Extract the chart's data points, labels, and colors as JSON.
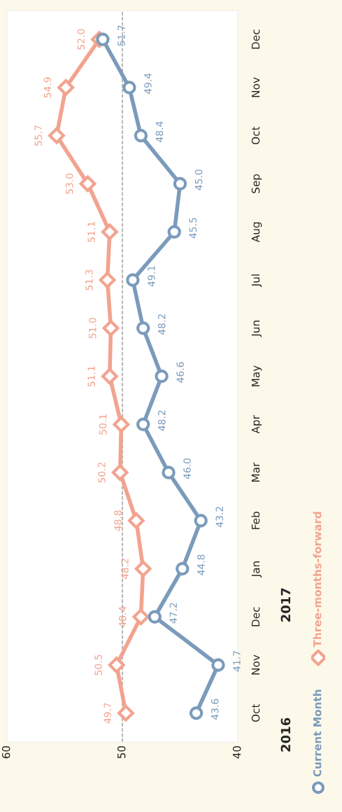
{
  "chart_data": {
    "type": "line",
    "orientation": "horizontal",
    "categories": [
      "Dec",
      "Nov",
      "Oct",
      "Sep",
      "Aug",
      "Jul",
      "Jun",
      "May",
      "Apr",
      "Mar",
      "Feb",
      "Jan",
      "Dec",
      "Nov",
      "Oct"
    ],
    "series": [
      {
        "name": "Current Month",
        "color": "#7b9bbb",
        "marker": "circle",
        "values": [
          51.7,
          49.4,
          48.4,
          45.0,
          45.5,
          49.1,
          48.2,
          46.6,
          48.2,
          46.0,
          43.2,
          44.8,
          47.2,
          41.7,
          43.6
        ],
        "value_labels": [
          "51.7",
          "49.4",
          "48.4",
          "45.0",
          "45.5",
          "49.1",
          "48.2",
          "46.6",
          "48.2",
          "46.0",
          "43.2",
          "44.8",
          "47.2",
          "41.7",
          "43.6"
        ]
      },
      {
        "name": "Three-months-forward",
        "color": "#f2a38f",
        "marker": "diamond",
        "values": [
          52.0,
          54.9,
          55.7,
          53.0,
          51.1,
          51.3,
          51.0,
          51.1,
          50.1,
          50.2,
          48.8,
          48.2,
          48.4,
          50.5,
          49.7
        ],
        "value_labels": [
          "52.0",
          "54.9",
          "55.7",
          "53.0",
          "51.1",
          "51.3",
          "51.0",
          "51.1",
          "50.1",
          "50.2",
          "48.8",
          "48.2",
          "48.4",
          "50.5",
          "49.7"
        ]
      }
    ],
    "xlim": [
      60,
      40
    ],
    "xticks": [
      60,
      50,
      40
    ],
    "ref_lines": [
      {
        "axis": "x",
        "value": 50,
        "color": "#999999",
        "line_style": "dashed"
      }
    ],
    "annotations": [
      "2016",
      "2017"
    ],
    "grid": false,
    "legend": "right",
    "line_style": "solid"
  }
}
